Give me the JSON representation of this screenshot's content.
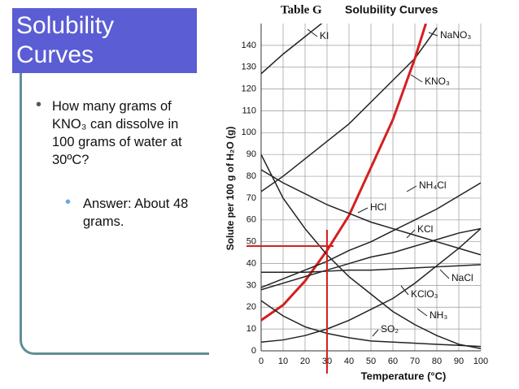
{
  "slide": {
    "title": "Solubility Curves",
    "bullets": [
      {
        "text": "How many grams of KNO₃ can dissolve in 100 grams of water at 30ºC?",
        "sub": [
          "Answer: About 48 grams."
        ]
      }
    ]
  },
  "chart_data": {
    "type": "line",
    "title": "Table G",
    "subtitle": "Solubility Curves",
    "x_label": "Temperature (°C)",
    "y_label": "Solute per 100 g of H₂O (g)",
    "xlim": [
      0,
      100
    ],
    "ylim": [
      0,
      150
    ],
    "xticks": [
      0,
      10,
      20,
      30,
      40,
      50,
      60,
      70,
      80,
      90,
      100
    ],
    "yticks": [
      0,
      10,
      20,
      30,
      40,
      50,
      60,
      70,
      80,
      90,
      100,
      110,
      120,
      130,
      140
    ],
    "grid": true,
    "series": [
      {
        "name": "KI",
        "color": "#222222",
        "x": [
          0,
          10,
          20,
          30
        ],
        "values": [
          127,
          136,
          144,
          152
        ]
      },
      {
        "name": "NaNO₃",
        "color": "#222222",
        "x": [
          0,
          10,
          20,
          30,
          40,
          50,
          60,
          70,
          80
        ],
        "values": [
          73,
          80,
          88,
          96,
          104,
          114,
          124,
          134,
          148
        ]
      },
      {
        "name": "KNO₃",
        "color": "#d42020",
        "x": [
          0,
          10,
          20,
          30,
          40,
          50,
          60,
          70,
          75
        ],
        "values": [
          14,
          21,
          32,
          46,
          62,
          84,
          106,
          134,
          150
        ]
      },
      {
        "name": "NH₄Cl",
        "color": "#222222",
        "x": [
          0,
          10,
          20,
          30,
          40,
          50,
          60,
          70,
          80,
          90,
          100
        ],
        "values": [
          29,
          33,
          37,
          41,
          46,
          50,
          55,
          60,
          65,
          71,
          77
        ]
      },
      {
        "name": "HCl",
        "color": "#222222",
        "x": [
          0,
          10,
          20,
          30,
          40,
          50,
          60,
          70,
          80,
          90,
          100
        ],
        "values": [
          83,
          77,
          72,
          67,
          63,
          59,
          56,
          53,
          50,
          47,
          44
        ]
      },
      {
        "name": "KCl",
        "color": "#222222",
        "x": [
          0,
          10,
          20,
          30,
          40,
          50,
          60,
          70,
          80,
          90,
          100
        ],
        "values": [
          28,
          31,
          34,
          37,
          40,
          43,
          45,
          48,
          51,
          54,
          56
        ]
      },
      {
        "name": "NaCl",
        "color": "#222222",
        "x": [
          0,
          10,
          20,
          30,
          40,
          50,
          60,
          70,
          80,
          90,
          100
        ],
        "values": [
          36,
          36,
          36,
          36.5,
          37,
          37,
          37.5,
          38,
          38.5,
          39,
          39.5
        ]
      },
      {
        "name": "KClO₃",
        "color": "#222222",
        "x": [
          0,
          10,
          20,
          30,
          40,
          50,
          60,
          70,
          80,
          90,
          100
        ],
        "values": [
          4,
          5,
          7,
          10,
          14,
          19,
          24,
          31,
          39,
          47,
          56
        ]
      },
      {
        "name": "NH₃",
        "color": "#222222",
        "x": [
          0,
          10,
          20,
          30,
          40,
          50,
          60,
          70,
          80,
          90,
          100
        ],
        "values": [
          90,
          70,
          56,
          44,
          34,
          26,
          18,
          12,
          7,
          3,
          1
        ]
      },
      {
        "name": "SO₂",
        "color": "#222222",
        "x": [
          0,
          10,
          20,
          30,
          40,
          50,
          60,
          70,
          80,
          90,
          100
        ],
        "values": [
          23,
          16,
          11,
          8,
          6,
          4.5,
          4,
          3.5,
          3,
          2.5,
          2
        ]
      }
    ],
    "guide": {
      "x": 30,
      "y": 48,
      "color": "#d42020"
    }
  }
}
